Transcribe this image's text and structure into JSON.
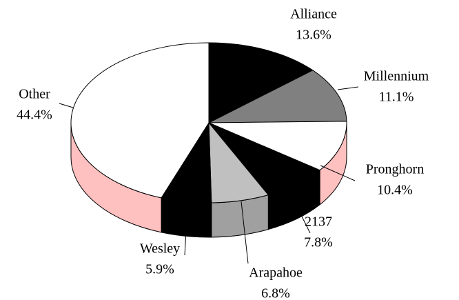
{
  "chart_data": {
    "type": "pie3d",
    "categories": [
      "Alliance",
      "Millennium",
      "Pronghorn",
      "2137",
      "Arapahoe",
      "Wesley",
      "Other"
    ],
    "values": [
      13.6,
      11.1,
      10.4,
      7.8,
      6.8,
      5.9,
      44.4
    ],
    "value_labels": [
      "13.6%",
      "11.1%",
      "10.4%",
      "7.8%",
      "6.8%",
      "5.9%",
      "44.4%"
    ],
    "colors": [
      "#000000",
      "#808080",
      "#ffffff",
      "#000000",
      "#c0c0c0",
      "#000000",
      "#ffffff"
    ],
    "side_colors": [
      "#000000",
      "#606060",
      "#ffc0c0",
      "#000000",
      "#a0a0a0",
      "#000000",
      "#ffc0c0"
    ]
  }
}
